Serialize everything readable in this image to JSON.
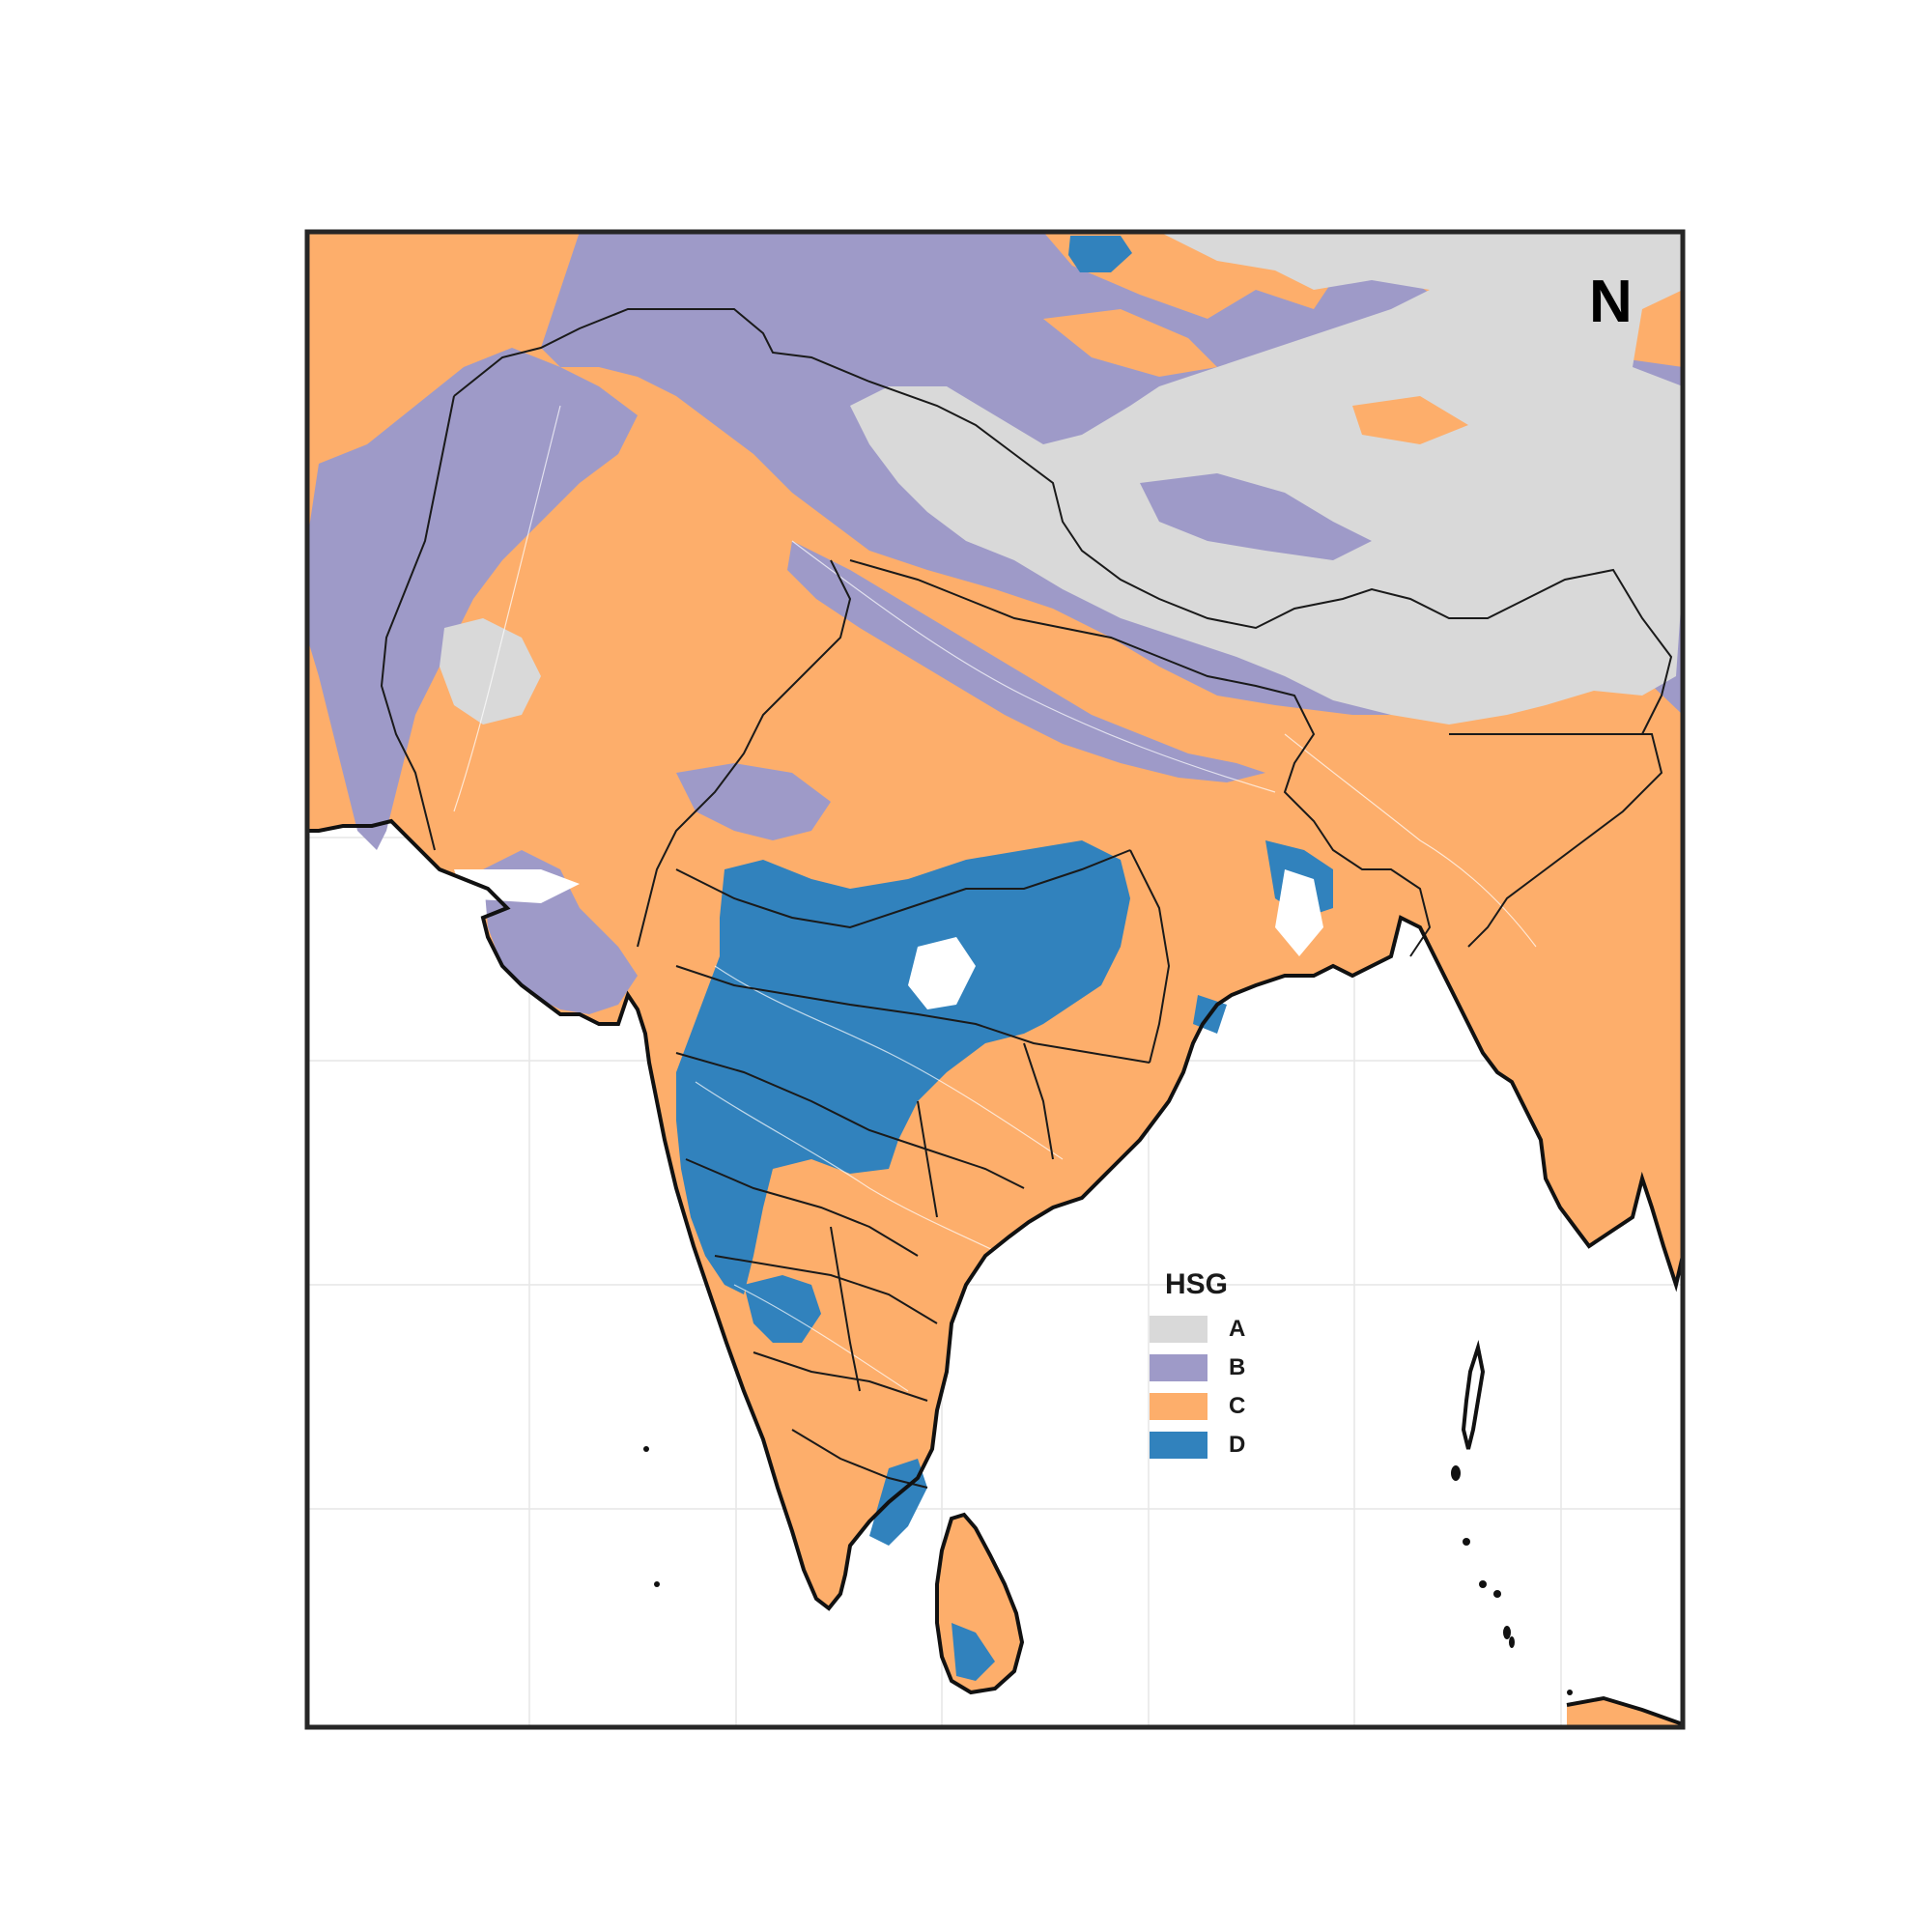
{
  "map": {
    "north_arrow_label": "N",
    "legend": {
      "title": "HSG",
      "items": [
        {
          "label": "A",
          "color": "#d9d9d9"
        },
        {
          "label": "B",
          "color": "#9e9ac8"
        },
        {
          "label": "C",
          "color": "#fdae6b"
        },
        {
          "label": "D",
          "color": "#3182bd"
        }
      ]
    },
    "colors": {
      "ocean": "#ffffff",
      "frame": "#262626",
      "boundary": "#1a1a1a",
      "graticule": "#e6e6e6",
      "rivers": "#ffffff"
    }
  }
}
